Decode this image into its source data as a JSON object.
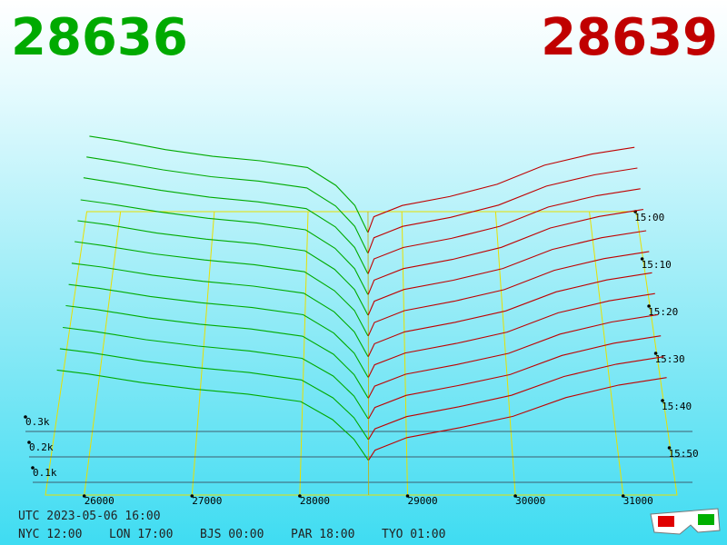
{
  "chart_data": {
    "type": "depth3d",
    "bid_label": "28636",
    "ask_label": "28639",
    "bid_color": "#00aa00",
    "ask_color": "#c00000",
    "bid_prices": [
      25700,
      26000,
      26500,
      27000,
      27500,
      28000,
      28300,
      28500,
      28636
    ],
    "ask_prices": [
      28639,
      28700,
      29000,
      29500,
      30000,
      30500,
      31000,
      31450
    ],
    "snapshots": [
      {
        "bids": [
          430,
          410,
          370,
          340,
          320,
          290,
          210,
          120,
          0
        ],
        "asks": [
          0,
          70,
          120,
          160,
          215,
          300,
          350,
          380
        ]
      },
      {
        "bids": [
          425,
          405,
          368,
          338,
          318,
          288,
          208,
          118,
          0
        ],
        "asks": [
          0,
          68,
          118,
          158,
          212,
          296,
          346,
          376
        ]
      },
      {
        "bids": [
          420,
          400,
          365,
          335,
          315,
          285,
          205,
          115,
          0
        ],
        "asks": [
          0,
          65,
          115,
          155,
          208,
          292,
          342,
          372
        ]
      },
      {
        "bids": [
          410,
          392,
          358,
          330,
          310,
          280,
          200,
          112,
          0
        ],
        "asks": [
          0,
          62,
          112,
          152,
          204,
          288,
          338,
          368
        ]
      },
      {
        "bids": [
          405,
          388,
          352,
          326,
          306,
          276,
          196,
          110,
          0
        ],
        "asks": [
          0,
          60,
          110,
          150,
          200,
          282,
          332,
          362
        ]
      },
      {
        "bids": [
          400,
          382,
          348,
          322,
          302,
          272,
          192,
          108,
          0
        ],
        "asks": [
          0,
          57,
          107,
          147,
          196,
          278,
          328,
          358
        ]
      },
      {
        "bids": [
          392,
          376,
          342,
          316,
          296,
          266,
          188,
          104,
          0
        ],
        "asks": [
          0,
          54,
          104,
          144,
          192,
          272,
          322,
          352
        ]
      },
      {
        "bids": [
          386,
          370,
          336,
          310,
          290,
          260,
          184,
          100,
          0
        ],
        "asks": [
          0,
          52,
          101,
          141,
          188,
          268,
          318,
          348
        ]
      },
      {
        "bids": [
          380,
          364,
          330,
          304,
          284,
          254,
          180,
          96,
          0
        ],
        "asks": [
          0,
          49,
          98,
          138,
          184,
          263,
          313,
          343
        ]
      },
      {
        "bids": [
          372,
          356,
          322,
          296,
          276,
          246,
          174,
          92,
          0
        ],
        "asks": [
          0,
          46,
          95,
          135,
          180,
          258,
          308,
          338
        ]
      },
      {
        "bids": [
          366,
          350,
          316,
          290,
          270,
          240,
          168,
          88,
          0
        ],
        "asks": [
          0,
          43,
          92,
          132,
          178,
          254,
          304,
          334
        ]
      },
      {
        "bids": [
          360,
          344,
          310,
          284,
          264,
          234,
          162,
          84,
          0
        ],
        "asks": [
          0,
          40,
          90,
          130,
          175,
          250,
          300,
          330
        ]
      }
    ],
    "xlim": [
      25640,
      31500
    ],
    "xticks": [
      26000,
      27000,
      28000,
      29000,
      30000,
      31000
    ],
    "zlim": [
      0,
      1000
    ],
    "zticks": [
      {
        "value": 100,
        "label": "0.1k"
      },
      {
        "value": 200,
        "label": "0.2k"
      },
      {
        "value": 300,
        "label": "0.3k"
      }
    ],
    "time_ticks": [
      "15:00",
      "15:10",
      "15:20",
      "15:30",
      "15:40",
      "15:50"
    ],
    "footer": [
      "UTC 2023-05-06 16:00",
      "NYC 12:00",
      "LON 17:00",
      "BJS 00:00",
      "PAR 18:00",
      "TYO 01:00"
    ]
  }
}
